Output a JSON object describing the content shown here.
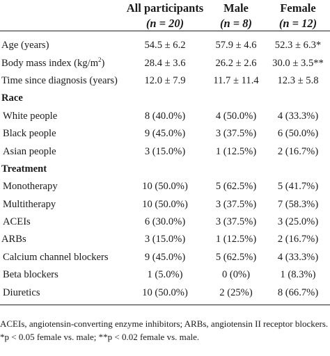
{
  "header": {
    "col_all": "All participants",
    "col_male": "Male",
    "col_female": "Female",
    "n_all": "(n = 20)",
    "n_male": "(n = 8)",
    "n_female": "(n = 12)"
  },
  "rows": {
    "age": {
      "label": "Age (years)",
      "all": "54.5 ± 6.2",
      "male": "57.9 ± 4.6",
      "female": "52.3 ± 6.3*"
    },
    "bmi": {
      "label": "Body mass index (kg/m",
      "label_sup": "2",
      "label_end": ")",
      "all": "28.4 ± 3.6",
      "male": "26.2 ± 2.6",
      "female": "30.0 ± 3.5**"
    },
    "time": {
      "label": "Time since diagnosis (years)",
      "all": "12.0 ± 7.9",
      "male": "11.7 ± 11.4",
      "female": "12.3 ± 5.8"
    },
    "race_heading": "Race",
    "white": {
      "label": "White people",
      "all": "8 (40.0%)",
      "male": "4 (50.0%)",
      "female": "4 (33.3%)"
    },
    "black": {
      "label": "Black people",
      "all": "9 (45.0%)",
      "male": "3 (37.5%)",
      "female": "6 (50.0%)"
    },
    "asian": {
      "label": "Asian people",
      "all": "3 (15.0%)",
      "male": "1 (12.5%)",
      "female": "2 (16.7%)"
    },
    "treatment_heading": "Treatment",
    "mono": {
      "label": "Monotherapy",
      "all": "10 (50.0%)",
      "male": "5 (62.5%)",
      "female": "5 (41.7%)"
    },
    "multi": {
      "label": "Multitherapy",
      "all": "10 (50.0%)",
      "male": "3 (37.5%)",
      "female": "7 (58.3%)"
    },
    "acei": {
      "label": "ACEIs",
      "all": "6 (30.0%)",
      "male": "3 (37.5%)",
      "female": "3 (25.0%)"
    },
    "arb": {
      "label": "ARBs",
      "all": "3 (15.0%)",
      "male": "1 (12.5%)",
      "female": "2 (16.7%)"
    },
    "ccb": {
      "label": "Calcium channel blockers",
      "all": "9 (45.0%)",
      "male": "5 (62.5%)",
      "female": "4 (33.3%)"
    },
    "beta": {
      "label": "Beta blockers",
      "all": "1 (5.0%)",
      "male": "0 (0%)",
      "female": "1 (8.3%)"
    },
    "diur": {
      "label": "Diuretics",
      "all": "10 (50.0%)",
      "male": "2 (25%)",
      "female": "8 (66.7%)"
    }
  },
  "notes": {
    "abbreviations": "ACEIs, angiotensin-converting enzyme inhibitors; ARBs, angiotensin II receptor blockers.",
    "significance": "*p < 0.05 female vs. male; **p < 0.02 female vs. male."
  }
}
